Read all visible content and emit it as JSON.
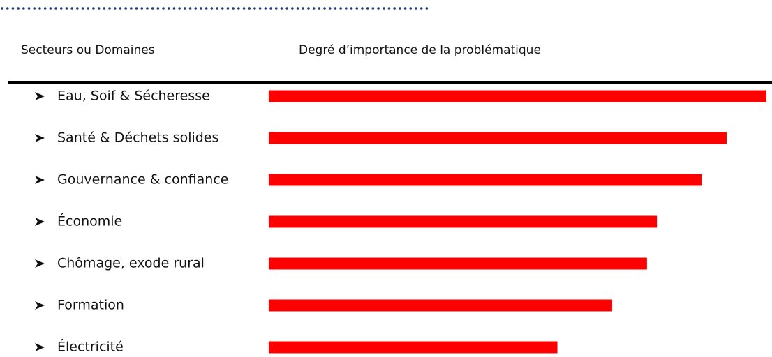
{
  "chart_data": {
    "type": "bar",
    "orientation": "horizontal",
    "y_label": "Secteurs ou Domaines",
    "x_label": "Degré d’importance de la problématique",
    "categories": [
      "Eau, Soif & Sécheresse",
      "Santé & Déchets solides",
      "Gouvernance & confiance",
      "Économie",
      "Chômage, exode rural",
      "Formation",
      "Électricité"
    ],
    "values": [
      100,
      92,
      87,
      78,
      76,
      69,
      58
    ],
    "color": "#ff0000",
    "xlim": [
      0,
      100
    ]
  }
}
